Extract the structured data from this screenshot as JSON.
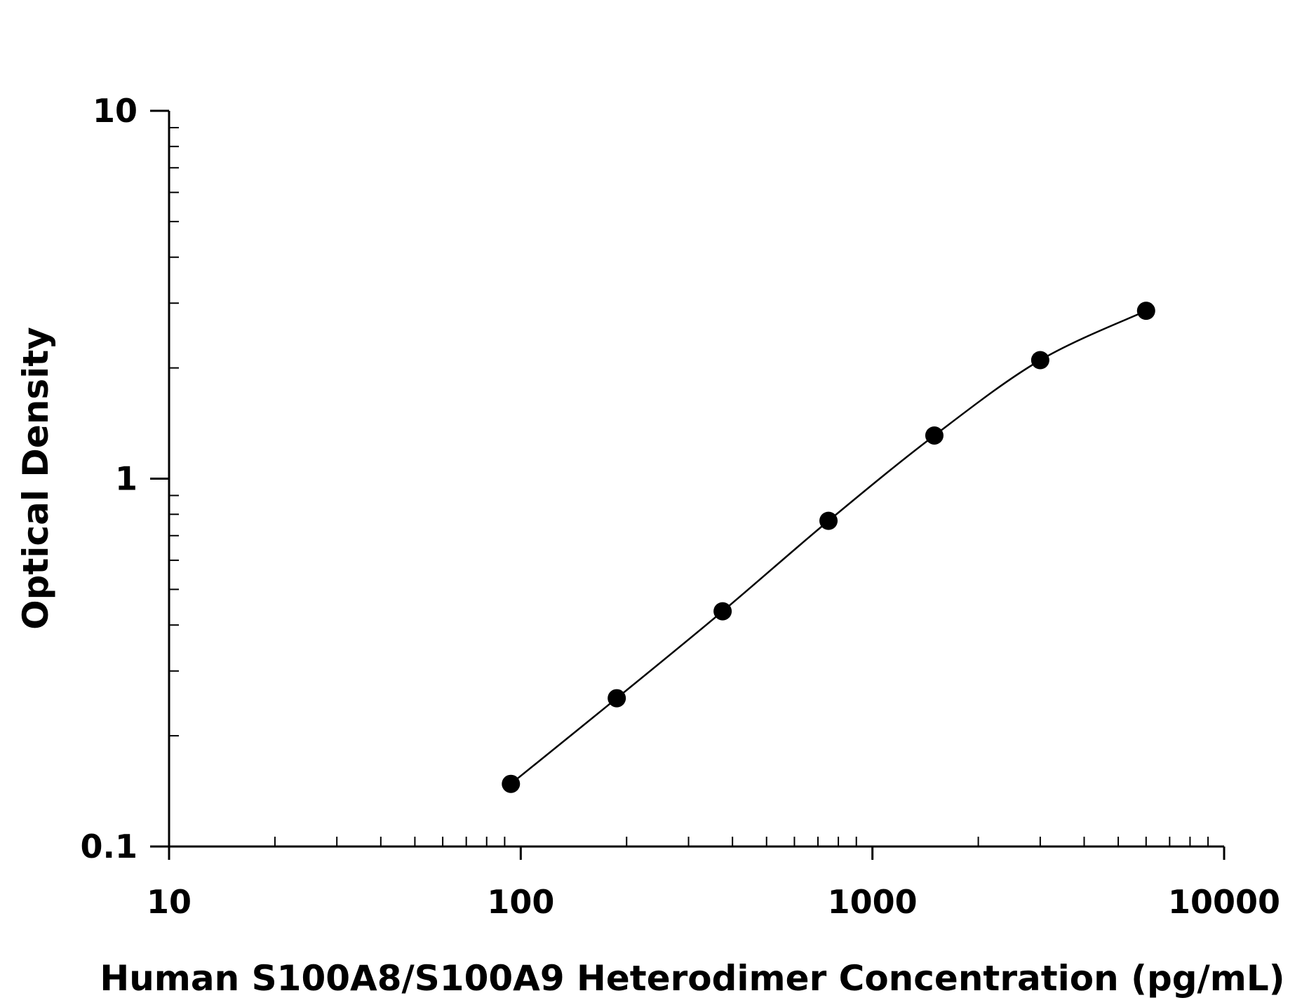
{
  "chart_data": {
    "type": "scatter",
    "title": "",
    "xlabel": "Human S100A8/S100A9 Heterodimer Concentration (pg/mL)",
    "ylabel": "Optical Density",
    "x_scale": "log",
    "y_scale": "log",
    "xlim": [
      10,
      10000
    ],
    "ylim": [
      0.1,
      10
    ],
    "x_ticks": [
      10,
      100,
      1000,
      10000
    ],
    "x_tick_labels": [
      "10",
      "100",
      "1000",
      "10000"
    ],
    "y_ticks": [
      0.1,
      1,
      10
    ],
    "y_tick_labels": [
      "0.1",
      "1",
      "10"
    ],
    "grid": false,
    "legend": "none",
    "marker_color": "#000000",
    "line_color": "#000000",
    "series": [
      {
        "x": [
          93.75,
          187.5,
          375,
          750,
          1500,
          3000,
          6000
        ],
        "y": [
          0.148,
          0.253,
          0.436,
          0.768,
          1.31,
          2.1,
          2.86
        ]
      }
    ]
  }
}
